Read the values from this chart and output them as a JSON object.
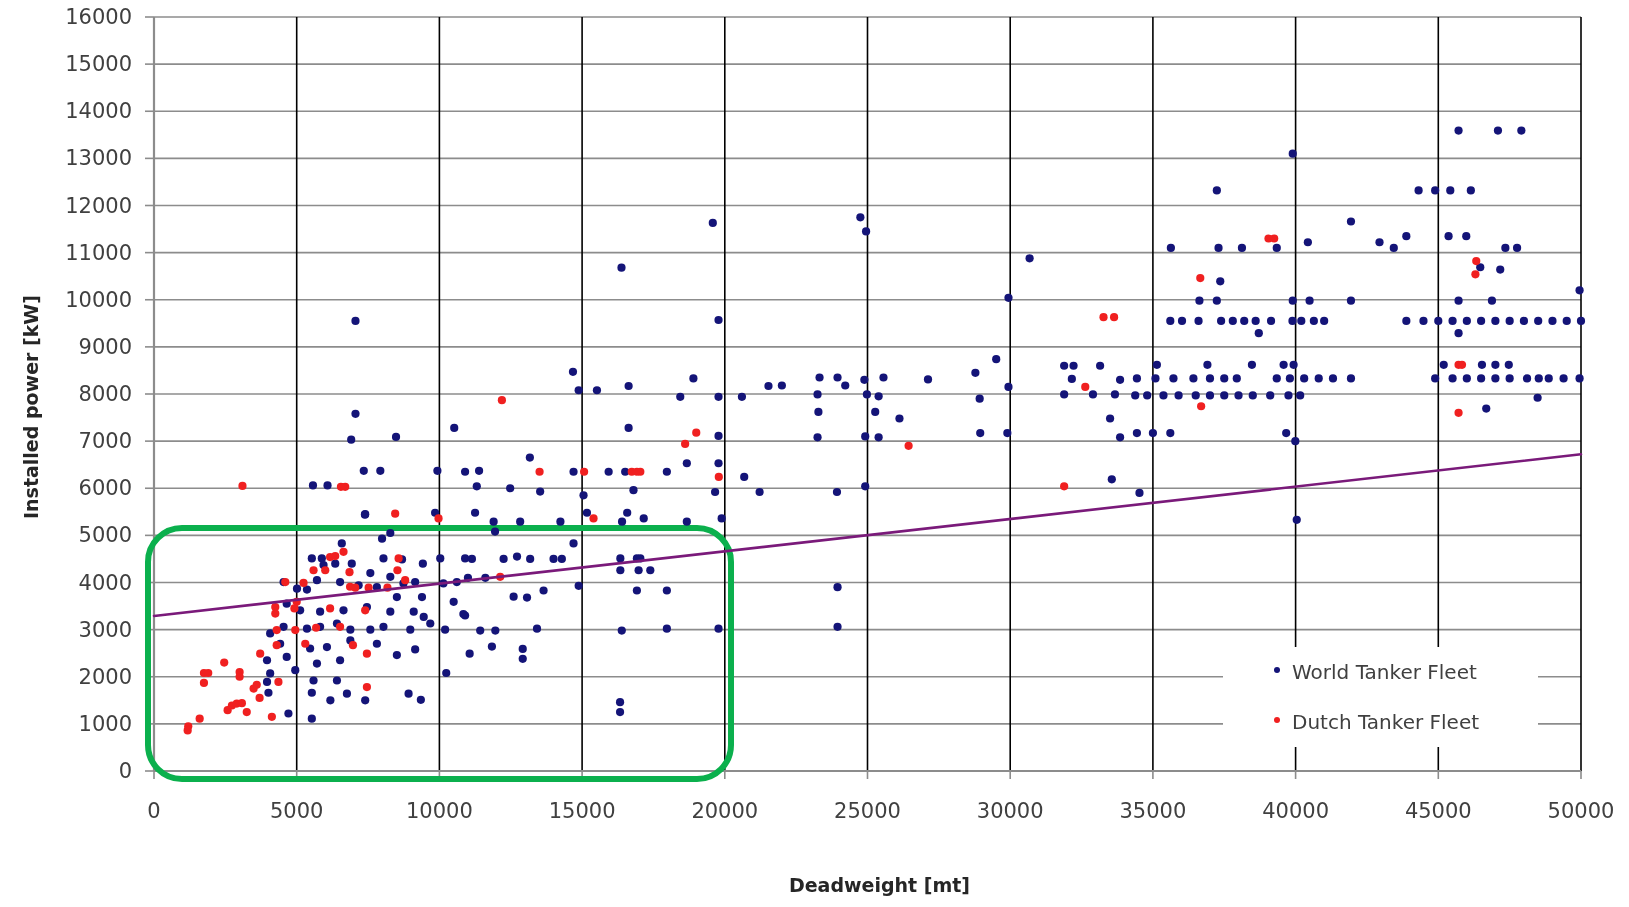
{
  "chart_data": {
    "type": "scatter",
    "xlabel": "Deadweight [mt]",
    "ylabel": "Installed power [kW]",
    "xlim": [
      0,
      50000
    ],
    "ylim": [
      0,
      16000
    ],
    "xticks": [
      0,
      5000,
      10000,
      15000,
      20000,
      25000,
      30000,
      35000,
      40000,
      45000,
      50000
    ],
    "yticks": [
      0,
      1000,
      2000,
      3000,
      4000,
      5000,
      6000,
      7000,
      8000,
      9000,
      10000,
      11000,
      12000,
      13000,
      14000,
      15000,
      16000
    ],
    "grid": true,
    "legend": "bottom right",
    "series": [
      {
        "name": "World Tanker Fleet",
        "color": "#141478",
        "marker": "circle",
        "x": [
          7400,
          9850,
          7990,
          8280,
          6580,
          5530,
          5880,
          5940,
          6350,
          6930,
          8040,
          8690,
          9420,
          10030,
          10900,
          7580,
          8280,
          4540,
          5010,
          5360,
          5710,
          6520,
          7170,
          7810,
          8740,
          9150,
          10140,
          10610,
          8510,
          9390,
          10500,
          4650,
          5120,
          5820,
          6640,
          7460,
          8280,
          9100,
          9450,
          10900,
          4070,
          4540,
          5360,
          5820,
          6410,
          6880,
          7580,
          8040,
          8980,
          9680,
          10200,
          4420,
          5470,
          6060,
          6880,
          7810,
          8510,
          9150,
          3960,
          4650,
          5710,
          6520,
          4070,
          4950,
          5590,
          6410,
          3960,
          10240,
          4010,
          5530,
          6180,
          6760,
          7400,
          8920,
          9350,
          4710,
          5530,
          11140,
          12250,
          12720,
          13180,
          14000,
          14290,
          16340,
          16920,
          17040,
          16340,
          16980,
          17390,
          11000,
          11610,
          14880,
          13650,
          16920,
          17970,
          12600,
          13070,
          10840,
          11430,
          11960,
          13420,
          16390,
          17970,
          19780,
          11840,
          12920,
          12920,
          11060,
          16330,
          16330,
          14700,
          11950,
          11900,
          12830,
          14240,
          16400,
          18670,
          19890,
          11250,
          15170,
          16580,
          17160,
          11310,
          12480,
          13530,
          15050,
          16800,
          19660,
          21220,
          10900,
          14700,
          15930,
          16510,
          17970,
          18670,
          19780,
          20680,
          10520,
          16630,
          19780,
          14680,
          14880,
          15520,
          16630,
          18900,
          18440,
          19780,
          20600,
          21530,
          19780,
          19580,
          16380,
          7060,
          7060,
          6910,
          8480,
          7350,
          7930,
          5570,
          6080,
          7390,
          9930,
          11390,
          13170,
          24750,
          24950,
          30680,
          29940,
          22000,
          23320,
          23950,
          23250,
          23280,
          23250,
          24220,
          24890,
          24980,
          25390,
          25560,
          25270,
          24920,
          25390,
          24920,
          23930,
          26120,
          27120,
          28780,
          29510,
          28930,
          29940,
          28950,
          29900,
          31890,
          32220,
          32160,
          31890,
          32900,
          33150,
          33850,
          33670,
          33500,
          33850,
          33560,
          34530,
          23950,
          23950,
          45710,
          47090,
          47910,
          39900,
          37240,
          44310,
          44890,
          45420,
          46140,
          41940,
          35630,
          37300,
          38120,
          39340,
          40430,
          42940,
          43440,
          43880,
          45360,
          45980,
          47350,
          47760,
          46470,
          47170,
          37360,
          36630,
          37240,
          39900,
          40490,
          41940,
          45710,
          46880,
          49950,
          35610,
          36020,
          36600,
          37390,
          37800,
          38200,
          38600,
          39140,
          39890,
          40200,
          40640,
          41000,
          43880,
          44480,
          45000,
          45500,
          46000,
          46500,
          47000,
          47500,
          48000,
          48500,
          49000,
          49500,
          50000,
          38710,
          45710,
          35140,
          36910,
          38470,
          39580,
          39930,
          45190,
          46530,
          47000,
          47470,
          34440,
          35090,
          35720,
          36420,
          37000,
          37500,
          37940,
          39340,
          39800,
          40300,
          40810,
          41310,
          41940,
          44890,
          45500,
          46000,
          46500,
          47000,
          47500,
          48110,
          48520,
          48870,
          49390,
          49950,
          34380,
          34800,
          35370,
          35900,
          36500,
          37000,
          37500,
          38000,
          38500,
          39110,
          39750,
          40160,
          48480,
          46680,
          34440,
          35000,
          35610,
          39670,
          39990,
          40040
        ],
        "values": [
          5450,
          5480,
          4930,
          5050,
          4830,
          4510,
          4510,
          4370,
          4400,
          4400,
          4510,
          4490,
          4400,
          4510,
          4510,
          4200,
          4120,
          4010,
          3870,
          3850,
          4050,
          4010,
          3940,
          3900,
          3980,
          4010,
          3980,
          4010,
          3690,
          3690,
          3590,
          3550,
          3410,
          3380,
          3410,
          3480,
          3380,
          3380,
          3270,
          3300,
          2920,
          3060,
          3020,
          3060,
          3130,
          3000,
          3000,
          3060,
          3000,
          3130,
          3000,
          2700,
          2600,
          2630,
          2770,
          2700,
          2460,
          2580,
          2350,
          2420,
          2280,
          2350,
          2070,
          2140,
          1920,
          1920,
          1890,
          2080,
          1660,
          1660,
          1500,
          1640,
          1500,
          1640,
          1510,
          1220,
          1110,
          4500,
          4500,
          4550,
          4500,
          4500,
          4500,
          4510,
          4510,
          4510,
          4260,
          4260,
          4260,
          4100,
          4100,
          3930,
          3830,
          3830,
          3830,
          3700,
          3680,
          3330,
          2980,
          2980,
          3020,
          2980,
          3020,
          3020,
          2640,
          2590,
          2380,
          2490,
          1460,
          1250,
          4830,
          5080,
          5290,
          5290,
          5290,
          5290,
          5290,
          5360,
          5480,
          5480,
          5480,
          5360,
          6040,
          6000,
          5930,
          5850,
          5960,
          5920,
          5920,
          6350,
          6350,
          6350,
          6350,
          6350,
          6530,
          6530,
          6240,
          7280,
          7280,
          7110,
          8470,
          8080,
          8080,
          8170,
          8330,
          7940,
          7940,
          7940,
          8170,
          9570,
          11630,
          10680,
          9550,
          7580,
          7030,
          7090,
          6370,
          6370,
          6060,
          6060,
          5440,
          6370,
          6370,
          6650,
          11750,
          11450,
          10880,
          10040,
          8180,
          8350,
          8350,
          7990,
          7620,
          7080,
          8180,
          8300,
          7990,
          7950,
          8350,
          7620,
          7100,
          7080,
          6040,
          5920,
          7480,
          8310,
          8450,
          8740,
          7900,
          8150,
          7170,
          7170,
          8600,
          8600,
          8320,
          7990,
          7990,
          8600,
          8300,
          7990,
          7480,
          7080,
          6190,
          5900,
          3900,
          3060,
          13590,
          13590,
          13590,
          13100,
          12320,
          12320,
          12320,
          12320,
          12320,
          11660,
          11100,
          11100,
          11100,
          11100,
          11220,
          11220,
          11100,
          11350,
          11350,
          11350,
          11100,
          11100,
          10690,
          10640,
          10390,
          9980,
          9980,
          9980,
          9980,
          9980,
          9980,
          9980,
          10200,
          9550,
          9550,
          9550,
          9550,
          9550,
          9550,
          9550,
          9550,
          9550,
          9550,
          9550,
          9550,
          9550,
          9550,
          9550,
          9550,
          9550,
          9550,
          9550,
          9550,
          9550,
          9550,
          9550,
          9550,
          9550,
          9290,
          9290,
          8620,
          8620,
          8620,
          8620,
          8620,
          8620,
          8620,
          8620,
          8620,
          8330,
          8330,
          8330,
          8330,
          8330,
          8330,
          8330,
          8330,
          8330,
          8330,
          8330,
          8330,
          8330,
          8330,
          8330,
          8330,
          8330,
          8330,
          8330,
          8330,
          8330,
          8330,
          8330,
          8330,
          7970,
          7970,
          7970,
          7970,
          7970,
          7970,
          7970,
          7970,
          7970,
          7970,
          7970,
          7970,
          7920,
          7690,
          7170,
          7170,
          7170,
          7170,
          7000,
          5330
        ]
      },
      {
        "name": "Dutch Tanker Fleet",
        "color": "#f02020",
        "marker": "circle",
        "x": [
          1180,
          1200,
          1600,
          1750,
          1750,
          1900,
          2460,
          2580,
          2730,
          2900,
          3080,
          3250,
          3000,
          3000,
          3490,
          3600,
          3700,
          3720,
          4130,
          4250,
          4250,
          4360,
          4300,
          4300,
          4600,
          5000,
          4920,
          4950,
          5240,
          5590,
          5680,
          5300,
          6000,
          6170,
          6350,
          6170,
          6520,
          6640,
          6850,
          6870,
          7050,
          6970,
          7400,
          7460,
          7460,
          7520,
          8180,
          8570,
          8530,
          8800,
          8450,
          9970,
          3100,
          6550,
          6700,
          12190,
          13510,
          15070,
          16740,
          16920,
          17040,
          15400,
          12130,
          18610,
          19000,
          19790,
          26440,
          31890,
          32630,
          33270,
          33640,
          39050,
          39250,
          36660,
          36690,
          46330,
          46300,
          45710,
          45830,
          45710
        ],
        "values": [
          860,
          950,
          1110,
          1870,
          2080,
          2080,
          2300,
          1290,
          1390,
          1430,
          1440,
          1250,
          2100,
          2000,
          1750,
          1830,
          1550,
          2490,
          1150,
          3480,
          3340,
          1890,
          2670,
          2990,
          4010,
          3590,
          3450,
          2990,
          3990,
          4260,
          3040,
          2700,
          4260,
          4540,
          4560,
          3450,
          3060,
          4650,
          4220,
          3910,
          3890,
          2670,
          3410,
          2490,
          1780,
          3890,
          3890,
          4510,
          4260,
          4050,
          5460,
          5360,
          6050,
          6030,
          6030,
          7870,
          6350,
          6350,
          6350,
          6350,
          6350,
          5360,
          4120,
          6940,
          7180,
          6240,
          6900,
          6040,
          8150,
          9630,
          9630,
          11300,
          11300,
          10460,
          7740,
          10820,
          10540,
          8620,
          8620,
          7600
        ]
      },
      {
        "type": "line",
        "color": "#7a1a7a",
        "x": [
          0,
          50000
        ],
        "values": [
          3290,
          6720
        ]
      }
    ]
  }
}
